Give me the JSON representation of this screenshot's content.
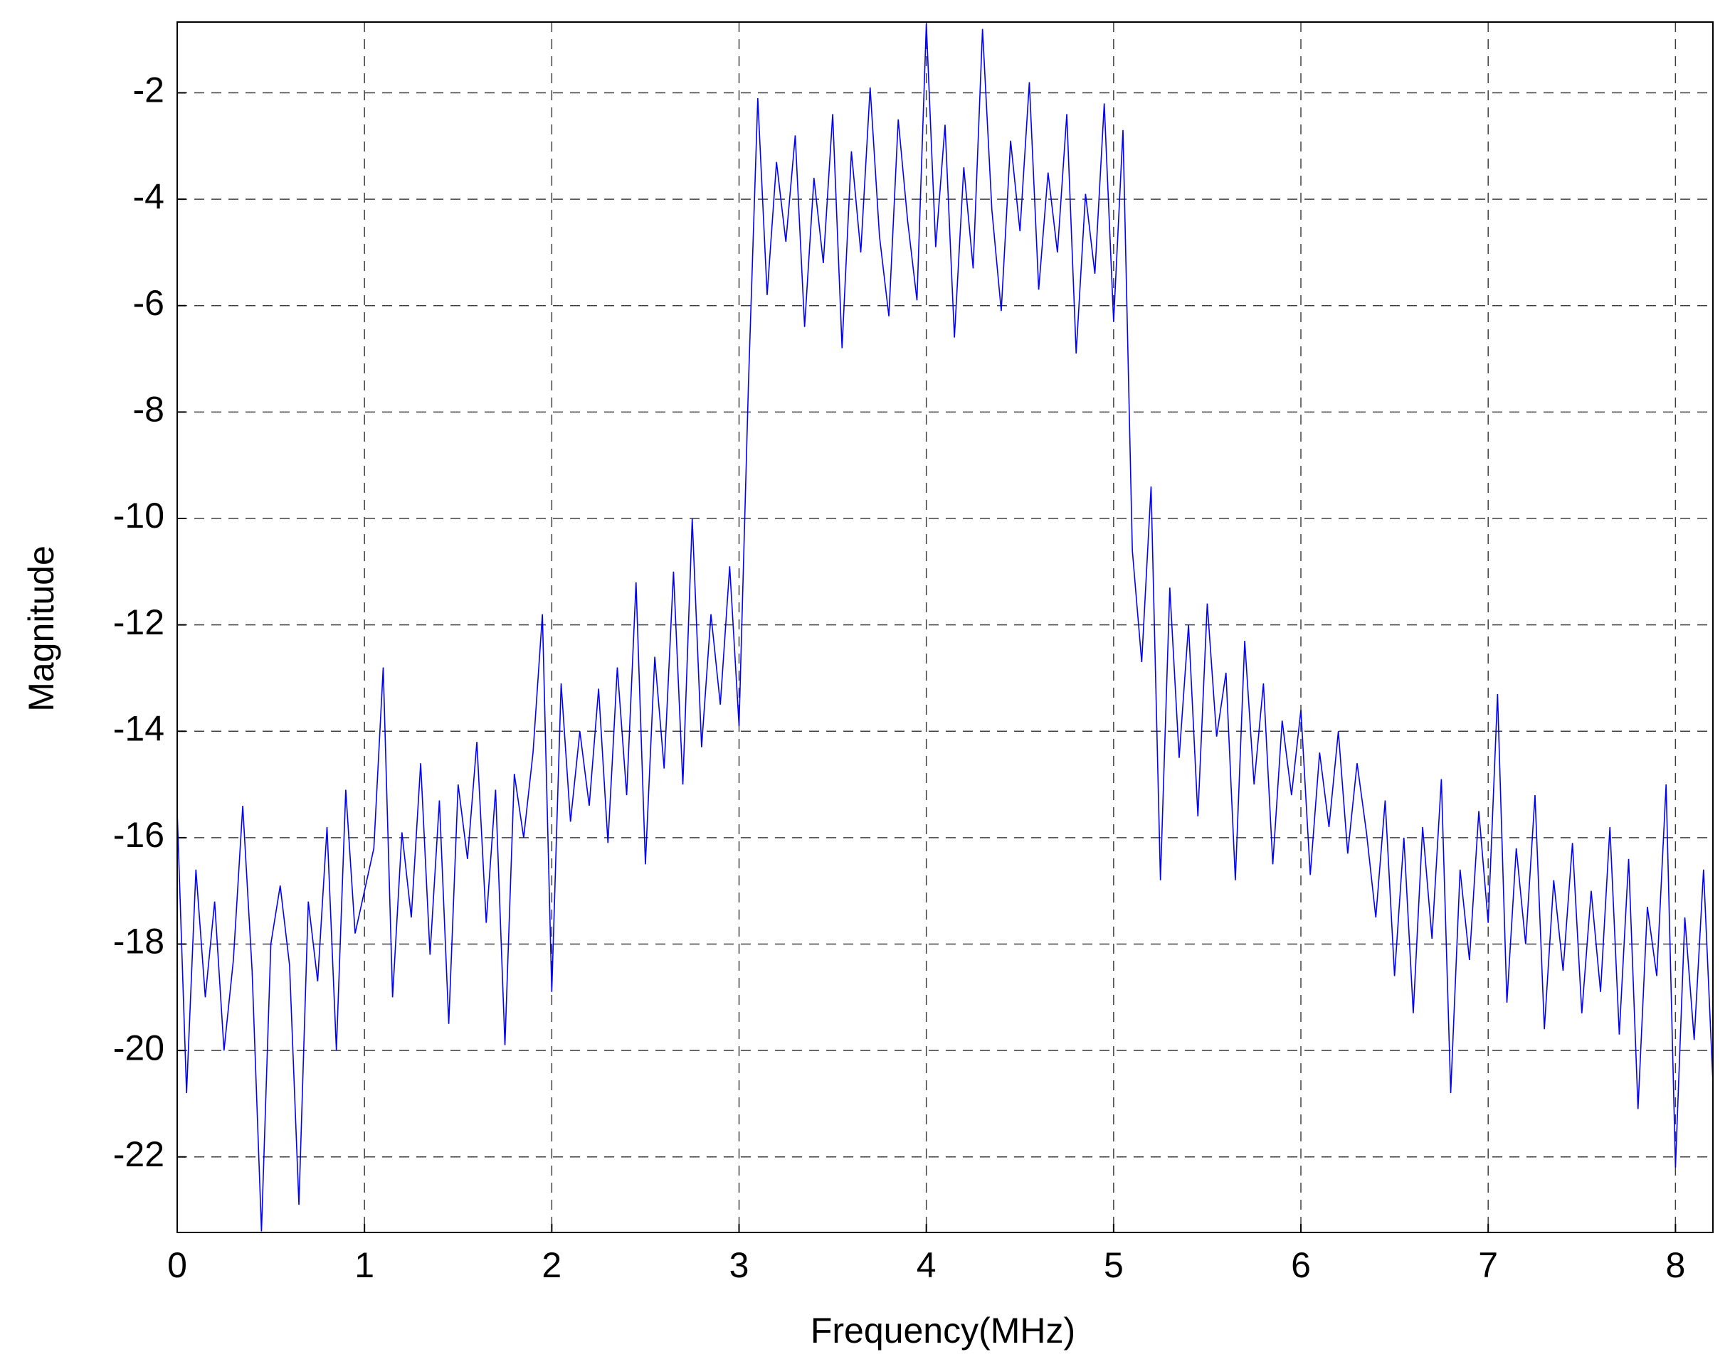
{
  "chart_data": {
    "type": "line",
    "x_label": "Frequency(MHz)",
    "y_label": "Magnitude",
    "xlim": [
      0,
      8.2
    ],
    "ylim": [
      -23.42,
      -0.67
    ],
    "xticks": [
      0,
      1,
      2,
      3,
      4,
      5,
      6,
      7,
      8
    ],
    "yticks": [
      -22,
      -20,
      -18,
      -16,
      -14,
      -12,
      -10,
      -8,
      -6,
      -4,
      -2
    ],
    "grid": true,
    "x": [
      0,
      0.05,
      0.1,
      0.15,
      0.2,
      0.25,
      0.3,
      0.35,
      0.4,
      0.45,
      0.5,
      0.55,
      0.6,
      0.65,
      0.7,
      0.75,
      0.8,
      0.85,
      0.9,
      0.95,
      1,
      1.05,
      1.1,
      1.15,
      1.2,
      1.25,
      1.3,
      1.35,
      1.4,
      1.45,
      1.5,
      1.55,
      1.6,
      1.65,
      1.7,
      1.75,
      1.8,
      1.85,
      1.9,
      1.95,
      2,
      2.05,
      2.1,
      2.15,
      2.2,
      2.25,
      2.3,
      2.35,
      2.4,
      2.45,
      2.5,
      2.55,
      2.6,
      2.65,
      2.7,
      2.75,
      2.8,
      2.85,
      2.9,
      2.95,
      3,
      3.05,
      3.1,
      3.15,
      3.2,
      3.25,
      3.3,
      3.35,
      3.4,
      3.45,
      3.5,
      3.55,
      3.6,
      3.65,
      3.7,
      3.75,
      3.8,
      3.85,
      3.9,
      3.95,
      4,
      4.05,
      4.1,
      4.15,
      4.2,
      4.25,
      4.3,
      4.35,
      4.4,
      4.45,
      4.5,
      4.55,
      4.6,
      4.65,
      4.7,
      4.75,
      4.8,
      4.85,
      4.9,
      4.95,
      5,
      5.05,
      5.1,
      5.15,
      5.2,
      5.25,
      5.3,
      5.35,
      5.4,
      5.45,
      5.5,
      5.55,
      5.6,
      5.65,
      5.7,
      5.75,
      5.8,
      5.85,
      5.9,
      5.95,
      6,
      6.05,
      6.1,
      6.15,
      6.2,
      6.25,
      6.3,
      6.35,
      6.4,
      6.45,
      6.5,
      6.55,
      6.6,
      6.65,
      6.7,
      6.75,
      6.8,
      6.85,
      6.9,
      6.95,
      7,
      7.05,
      7.1,
      7.15,
      7.2,
      7.25,
      7.3,
      7.35,
      7.4,
      7.45,
      7.5,
      7.55,
      7.6,
      7.65,
      7.7,
      7.75,
      7.8,
      7.85,
      7.9,
      7.95,
      8,
      8.05,
      8.1,
      8.15,
      8.2
    ],
    "series": [
      {
        "color": "#0000ff",
        "values": [
          -15.5,
          -20.8,
          -16.6,
          -19.0,
          -17.2,
          -20.0,
          -18.3,
          -15.4,
          -18.5,
          -23.4,
          -18.0,
          -16.9,
          -18.4,
          -22.9,
          -17.2,
          -18.7,
          -15.8,
          -20.0,
          -15.1,
          -17.8,
          -17.0,
          -16.2,
          -12.8,
          -19.0,
          -15.9,
          -17.5,
          -14.6,
          -18.2,
          -15.3,
          -19.5,
          -15.0,
          -16.4,
          -14.2,
          -17.6,
          -15.1,
          -19.9,
          -14.8,
          -16.0,
          -14.4,
          -11.8,
          -18.9,
          -13.1,
          -15.7,
          -14.0,
          -15.4,
          -13.2,
          -16.1,
          -12.8,
          -15.2,
          -11.2,
          -16.5,
          -12.6,
          -14.7,
          -11.0,
          -15.0,
          -10.0,
          -14.3,
          -11.8,
          -13.5,
          -10.9,
          -13.9,
          -7.5,
          -2.1,
          -5.8,
          -3.3,
          -4.8,
          -2.8,
          -6.4,
          -3.6,
          -5.2,
          -2.4,
          -6.8,
          -3.1,
          -5.0,
          -1.9,
          -4.7,
          -6.2,
          -2.5,
          -4.4,
          -5.9,
          -0.7,
          -4.9,
          -2.6,
          -6.6,
          -3.4,
          -5.3,
          -0.8,
          -4.2,
          -6.1,
          -2.9,
          -4.6,
          -1.8,
          -5.7,
          -3.5,
          -5.0,
          -2.4,
          -6.9,
          -3.9,
          -5.4,
          -2.2,
          -6.3,
          -2.7,
          -10.6,
          -12.7,
          -9.4,
          -16.8,
          -11.3,
          -14.5,
          -12.0,
          -15.6,
          -11.6,
          -14.1,
          -12.9,
          -16.8,
          -12.3,
          -15.0,
          -13.1,
          -16.5,
          -13.8,
          -15.2,
          -13.6,
          -16.7,
          -14.4,
          -15.8,
          -14.0,
          -16.3,
          -14.6,
          -15.9,
          -17.5,
          -15.3,
          -18.6,
          -16.0,
          -19.3,
          -15.8,
          -17.9,
          -14.9,
          -20.8,
          -16.6,
          -18.3,
          -15.5,
          -17.6,
          -13.3,
          -19.1,
          -16.2,
          -18.0,
          -15.2,
          -19.6,
          -16.8,
          -18.5,
          -16.1,
          -19.3,
          -17.0,
          -18.9,
          -15.8,
          -19.7,
          -16.4,
          -21.1,
          -17.3,
          -18.6,
          -15.0,
          -22.2,
          -17.5,
          -19.8,
          -16.6,
          -20.6
        ]
      }
    ]
  }
}
